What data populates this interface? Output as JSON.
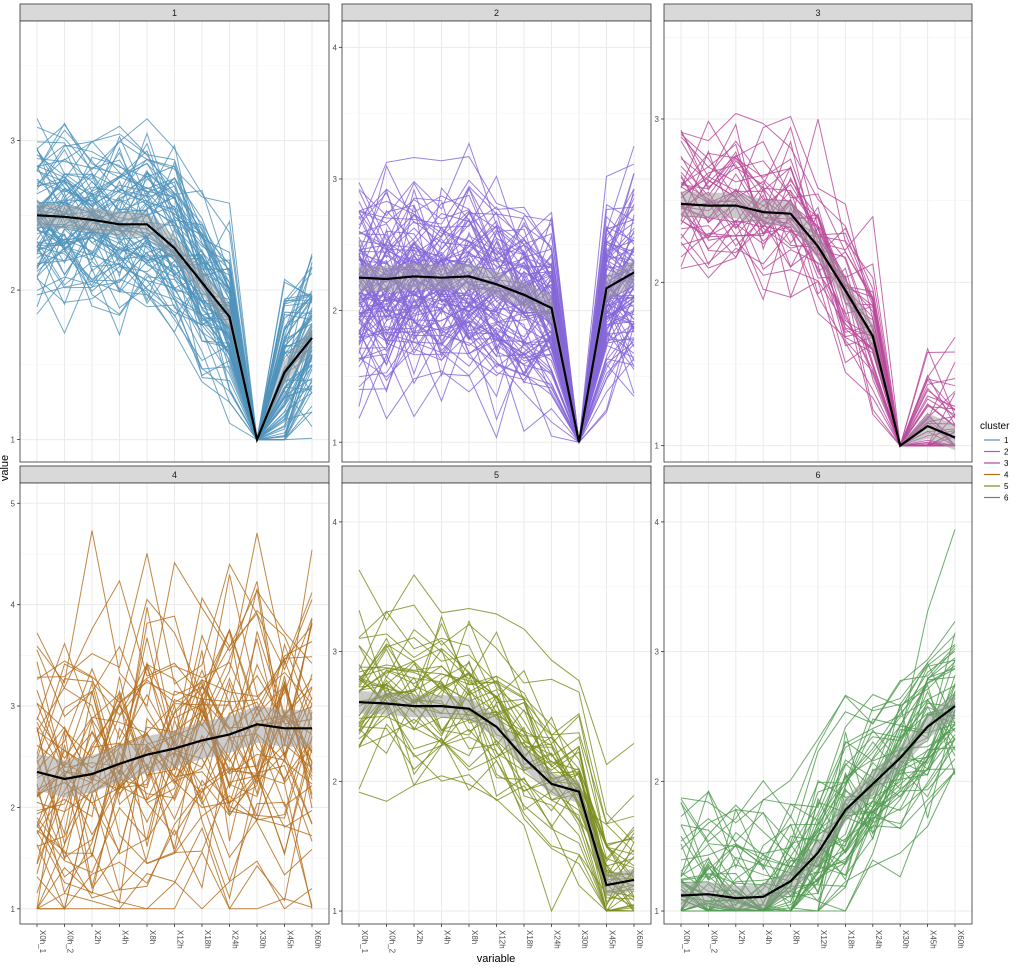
{
  "chart_data": {
    "type": "line",
    "title": "",
    "xlabel": "variable",
    "ylabel": "value",
    "x": [
      "X0h_1",
      "X0h_2",
      "X2h",
      "X4h",
      "X8h",
      "X12h",
      "X18h",
      "X24h",
      "X30h",
      "X45h",
      "X60h"
    ],
    "legend": {
      "title": "cluster",
      "placement": "right",
      "entries": [
        "1",
        "2",
        "3",
        "4",
        "5",
        "6"
      ]
    },
    "grid": true,
    "panels": [
      {
        "label": "1",
        "color": "#4f93bb",
        "yrange": [
          0.85,
          3.8
        ],
        "yticks": [
          1,
          2,
          3
        ],
        "mean": [
          2.5,
          2.49,
          2.47,
          2.44,
          2.44,
          2.28,
          2.05,
          1.82,
          1.0,
          1.45,
          1.68
        ],
        "n_profiles": 90,
        "spread": 0.32
      },
      {
        "label": "2",
        "color": "#8567d8",
        "yrange": [
          0.85,
          4.2
        ],
        "yticks": [
          1,
          2,
          3,
          4
        ],
        "mean": [
          2.25,
          2.24,
          2.26,
          2.25,
          2.26,
          2.2,
          2.12,
          2.02,
          1.0,
          2.17,
          2.29
        ],
        "n_profiles": 110,
        "spread": 0.42
      },
      {
        "label": "3",
        "color": "#b8489a",
        "yrange": [
          0.9,
          3.6
        ],
        "yticks": [
          1,
          2,
          3
        ],
        "mean": [
          2.48,
          2.47,
          2.47,
          2.43,
          2.42,
          2.22,
          1.95,
          1.67,
          1.0,
          1.12,
          1.05
        ],
        "n_profiles": 45,
        "spread": 0.3
      },
      {
        "label": "4",
        "color": "#b36d1c",
        "yrange": [
          0.85,
          5.2
        ],
        "yticks": [
          1,
          2,
          3,
          4,
          5
        ],
        "mean": [
          2.35,
          2.28,
          2.33,
          2.43,
          2.52,
          2.58,
          2.66,
          2.72,
          2.82,
          2.78,
          2.78
        ],
        "n_profiles": 55,
        "spread": 0.95
      },
      {
        "label": "5",
        "color": "#7a8c1c",
        "yrange": [
          0.9,
          4.3
        ],
        "yticks": [
          1,
          2,
          3,
          4
        ],
        "mean": [
          2.61,
          2.6,
          2.58,
          2.58,
          2.56,
          2.42,
          2.18,
          1.98,
          1.92,
          1.2,
          1.24
        ],
        "n_profiles": 45,
        "spread": 0.35
      },
      {
        "label": "6",
        "color": "#4f9a4f",
        "yrange": [
          0.9,
          4.3
        ],
        "yticks": [
          1,
          2,
          3,
          4
        ],
        "mean": [
          1.12,
          1.13,
          1.1,
          1.11,
          1.23,
          1.45,
          1.78,
          1.98,
          2.18,
          2.42,
          2.58
        ],
        "n_profiles": 60,
        "spread": 0.4
      }
    ]
  }
}
